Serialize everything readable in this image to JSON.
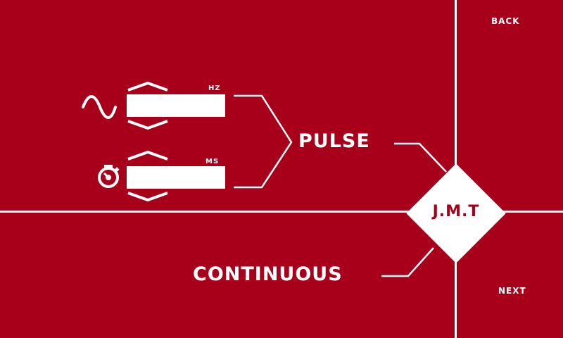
{
  "nav": {
    "back": "BACK",
    "next": "NEXT"
  },
  "frequency": {
    "unit": "HZ",
    "value": "",
    "icon": "sine-wave-icon"
  },
  "duration": {
    "unit": "MS",
    "value": "",
    "icon": "stopwatch-icon"
  },
  "modes": {
    "pulse": "PULSE",
    "continuous": "CONTINUOUS"
  },
  "brand": {
    "logo": "J.M.T"
  },
  "colors": {
    "background": "#a8001a",
    "foreground": "#ffffff"
  }
}
